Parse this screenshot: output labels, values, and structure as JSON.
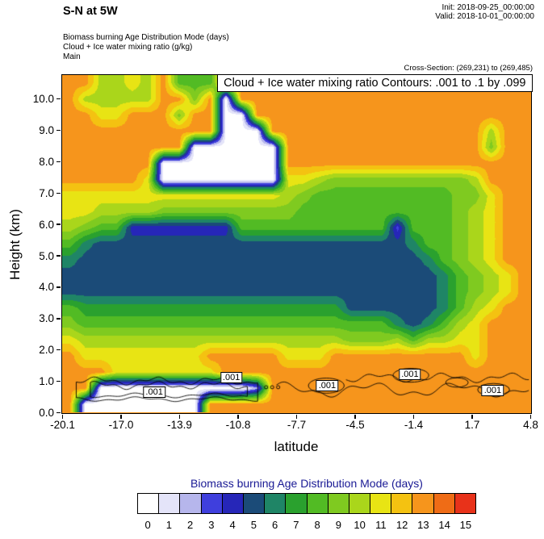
{
  "header": {
    "title": "S-N at 5W",
    "init": "Init: 2018-09-25_00:00:00",
    "valid": "Valid: 2018-10-01_00:00:00",
    "field_lines": [
      "Biomass burning Age Distribution Mode   (days)",
      "Cloud + Ice water mixing ratio   (g/kg)",
      "Main"
    ],
    "cross_section": "Cross-Section: (269,231) to (269,485)"
  },
  "plot": {
    "inner_title": "Cloud + Ice water mixing ratio Contours: .001 to .1 by .099",
    "xlabel": "latitude",
    "ylabel": "Height (km)",
    "x_ticks": [
      "-20.1",
      "-17.0",
      "-13.9",
      "-10.8",
      "-7.7",
      "-4.5",
      "-1.4",
      "1.7",
      "4.8"
    ],
    "y_ticks": [
      "0.0",
      "1.0",
      "2.0",
      "3.0",
      "4.0",
      "5.0",
      "6.0",
      "7.0",
      "8.0",
      "9.0",
      "10.0"
    ],
    "contour_labels": [
      {
        "text": ".001",
        "lat": -15.2,
        "km": 0.65
      },
      {
        "text": ".001",
        "lat": -11.1,
        "km": 1.1
      },
      {
        "text": ".001",
        "lat": -6.0,
        "km": 0.85
      },
      {
        "text": ".001",
        "lat": -1.6,
        "km": 1.2
      },
      {
        "text": ".001",
        "lat": 2.8,
        "km": 0.7
      }
    ]
  },
  "legend": {
    "title": "Biomass burning Age Distribution Mode  (days)",
    "labels": [
      "0",
      "1",
      "2",
      "3",
      "4",
      "5",
      "6",
      "7",
      "8",
      "9",
      "10",
      "11",
      "12",
      "13",
      "14",
      "15"
    ],
    "colors": [
      "#ffffff",
      "#e4e4f9",
      "#b6b6ec",
      "#3f3fdd",
      "#2626b8",
      "#1b4b78",
      "#1f8566",
      "#2aa12e",
      "#52bb24",
      "#7fca20",
      "#aad61b",
      "#e8e414",
      "#f4c211",
      "#f6951c",
      "#ef6c16",
      "#e8321a"
    ]
  },
  "chart_data": {
    "type": "heatmap",
    "title": "Biomass burning Age Distribution Mode (days), S-N cross-section at 5W",
    "x": {
      "label": "latitude",
      "range": [
        -20.1,
        4.8
      ]
    },
    "y": {
      "label": "Height (km)",
      "range": [
        0,
        10.75
      ]
    },
    "value_name": "Biomass burning Age Distribution Mode (days)",
    "value_range": [
      0,
      15
    ],
    "overlay_contours": {
      "variable": "Cloud + Ice water mixing ratio (g/kg)",
      "levels": [
        0.001,
        0.1
      ]
    },
    "grid_rows_top_to_bottom": true,
    "grid": [
      [
        13,
        13,
        10,
        10,
        11,
        10,
        13,
        8,
        8,
        8,
        13,
        13,
        13,
        13,
        13,
        13,
        13,
        13,
        13,
        13,
        13,
        13,
        13,
        13,
        13,
        13,
        13,
        13,
        13,
        13
      ],
      [
        13,
        10,
        10,
        10,
        10,
        10,
        13,
        13,
        9,
        13,
        0,
        13,
        13,
        13,
        13,
        13,
        13,
        13,
        13,
        13,
        13,
        13,
        13,
        13,
        13,
        13,
        13,
        13,
        13,
        13
      ],
      [
        13,
        13,
        11,
        11,
        13,
        13,
        13,
        9,
        13,
        13,
        0,
        0,
        13,
        13,
        13,
        13,
        13,
        13,
        13,
        13,
        13,
        13,
        13,
        13,
        13,
        13,
        13,
        13,
        13,
        13
      ],
      [
        13,
        13,
        13,
        13,
        13,
        13,
        13,
        13,
        13,
        13,
        0,
        0,
        0,
        13,
        13,
        13,
        13,
        13,
        13,
        13,
        13,
        13,
        13,
        13,
        13,
        13,
        13,
        10,
        13,
        13
      ],
      [
        13,
        13,
        13,
        13,
        13,
        13,
        13,
        13,
        0,
        0,
        0,
        0,
        0,
        0,
        13,
        13,
        13,
        13,
        13,
        13,
        13,
        13,
        13,
        13,
        13,
        13,
        13,
        9,
        13,
        13
      ],
      [
        13,
        13,
        13,
        13,
        13,
        13,
        0,
        0,
        0,
        0,
        0,
        0,
        0,
        0,
        13,
        13,
        13,
        13,
        13,
        13,
        13,
        13,
        13,
        13,
        13,
        13,
        13,
        13,
        13,
        13
      ],
      [
        13,
        13,
        13,
        13,
        13,
        11,
        0,
        0,
        0,
        0,
        0,
        0,
        0,
        0,
        11,
        11,
        10,
        9,
        9,
        9,
        9,
        9,
        9,
        9,
        9,
        9,
        10,
        13,
        13,
        13
      ],
      [
        11,
        11,
        11,
        11,
        11,
        11,
        11,
        11,
        11,
        11,
        11,
        11,
        11,
        11,
        10,
        9,
        8,
        8,
        8,
        8,
        8,
        8,
        8,
        8,
        8,
        9,
        9,
        11,
        13,
        13
      ],
      [
        11,
        11,
        10,
        10,
        10,
        10,
        9,
        9,
        9,
        9,
        9,
        9,
        9,
        9,
        9,
        8,
        8,
        8,
        8,
        8,
        8,
        8,
        8,
        8,
        8,
        9,
        10,
        11,
        13,
        13
      ],
      [
        10,
        9,
        8,
        8,
        4,
        4,
        4,
        4,
        4,
        4,
        4,
        8,
        8,
        8,
        8,
        8,
        8,
        8,
        8,
        8,
        8,
        3,
        8,
        8,
        8,
        9,
        10,
        11,
        13,
        13
      ],
      [
        8,
        6,
        5,
        5,
        5,
        5,
        5,
        5,
        5,
        5,
        5,
        5,
        5,
        5,
        5,
        5,
        5,
        5,
        5,
        5,
        5,
        5,
        6,
        8,
        8,
        9,
        10,
        11,
        13,
        13
      ],
      [
        6,
        5,
        5,
        5,
        5,
        5,
        5,
        5,
        5,
        5,
        5,
        5,
        5,
        5,
        5,
        5,
        5,
        5,
        5,
        5,
        5,
        5,
        5,
        6,
        8,
        9,
        10,
        11,
        13,
        13
      ],
      [
        5,
        5,
        5,
        5,
        5,
        5,
        5,
        5,
        5,
        5,
        5,
        5,
        5,
        5,
        5,
        5,
        5,
        5,
        5,
        5,
        5,
        5,
        5,
        5,
        6,
        8,
        9,
        10,
        11,
        13
      ],
      [
        5,
        5,
        5,
        5,
        5,
        5,
        5,
        5,
        5,
        5,
        5,
        5,
        5,
        5,
        5,
        5,
        5,
        5,
        5,
        5,
        5,
        5,
        5,
        5,
        6,
        8,
        9,
        10,
        11,
        13
      ],
      [
        8,
        7,
        7,
        7,
        7,
        7,
        7,
        7,
        7,
        7,
        7,
        7,
        7,
        7,
        7,
        7,
        7,
        7,
        5,
        5,
        5,
        5,
        5,
        5,
        6,
        8,
        10,
        11,
        13,
        13
      ],
      [
        9,
        8,
        8,
        8,
        8,
        8,
        8,
        8,
        8,
        8,
        8,
        8,
        8,
        8,
        8,
        8,
        8,
        8,
        8,
        8,
        8,
        6,
        5,
        6,
        8,
        10,
        11,
        13,
        13,
        13
      ],
      [
        11,
        10,
        10,
        10,
        10,
        10,
        10,
        10,
        10,
        10,
        10,
        10,
        10,
        10,
        10,
        10,
        10,
        10,
        9,
        9,
        9,
        10,
        8,
        10,
        10,
        11,
        11,
        13,
        13,
        13
      ],
      [
        13,
        11,
        11,
        11,
        11,
        11,
        11,
        11,
        11,
        13,
        13,
        13,
        13,
        13,
        11,
        11,
        11,
        13,
        13,
        13,
        13,
        13,
        13,
        13,
        13,
        13,
        11,
        13,
        13,
        13
      ],
      [
        13,
        13,
        13,
        11,
        11,
        11,
        11,
        11,
        11,
        11,
        13,
        13,
        13,
        13,
        13,
        13,
        13,
        13,
        13,
        13,
        13,
        13,
        13,
        13,
        13,
        13,
        13,
        13,
        13,
        13
      ],
      [
        13,
        13,
        0,
        0,
        0,
        0,
        0,
        0,
        0,
        0,
        0,
        0,
        2,
        13,
        13,
        13,
        13,
        13,
        13,
        13,
        13,
        13,
        13,
        13,
        13,
        13,
        13,
        13,
        13,
        13
      ],
      [
        13,
        0,
        0,
        0,
        0,
        0,
        0,
        0,
        0,
        13,
        13,
        13,
        13,
        13,
        13,
        13,
        13,
        13,
        13,
        13,
        13,
        13,
        13,
        13,
        13,
        13,
        13,
        13,
        13,
        13
      ]
    ]
  }
}
